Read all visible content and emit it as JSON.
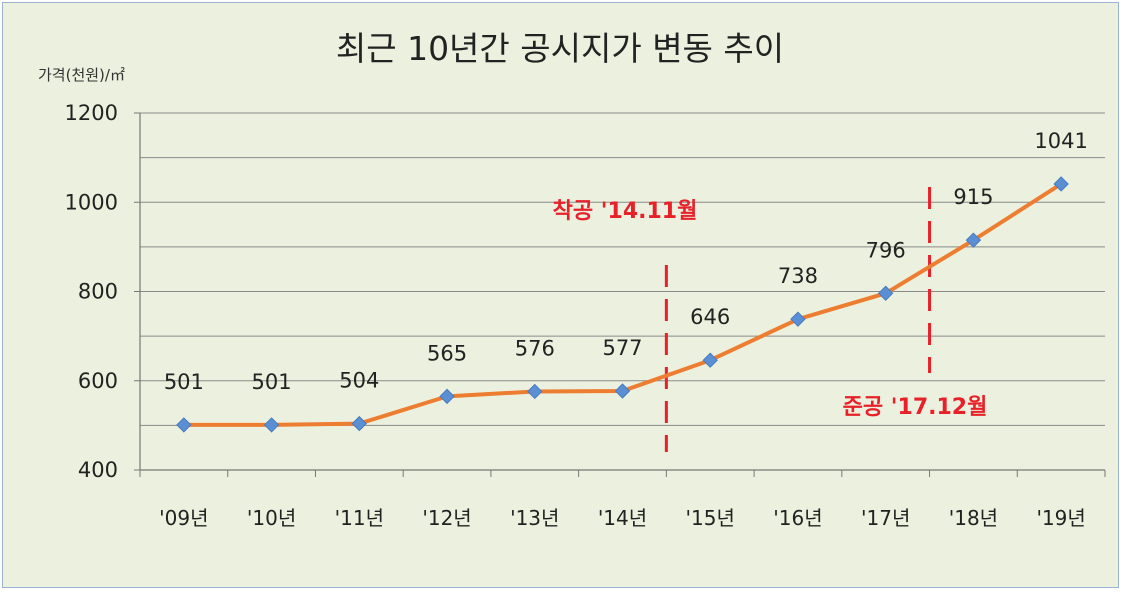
{
  "chart_data": {
    "type": "line",
    "title": "최근 10년간 공시지가 변동 추이",
    "ylabel": "가격(천원)/㎡",
    "xlabel": "",
    "categories": [
      "'09년",
      "'10년",
      "'11년",
      "'12년",
      "'13년",
      "'14년",
      "'15년",
      "'16년",
      "'17년",
      "'18년",
      "'19년"
    ],
    "series": [
      {
        "values": [
          501,
          501,
          504,
          565,
          576,
          577,
          646,
          738,
          796,
          915,
          1041
        ]
      }
    ],
    "ylim": [
      400,
      1200
    ],
    "yticks": [
      400,
      600,
      800,
      1000,
      1200
    ],
    "grid": true,
    "colors": {
      "line": "#ed7d31",
      "marker": "#5b8fd4",
      "annotation": "#e8202a"
    },
    "annotations": [
      {
        "text": "착공 '14.11월",
        "after_category": "'14년"
      },
      {
        "text": "준공 '17.12월",
        "after_category": "'17년"
      }
    ]
  }
}
